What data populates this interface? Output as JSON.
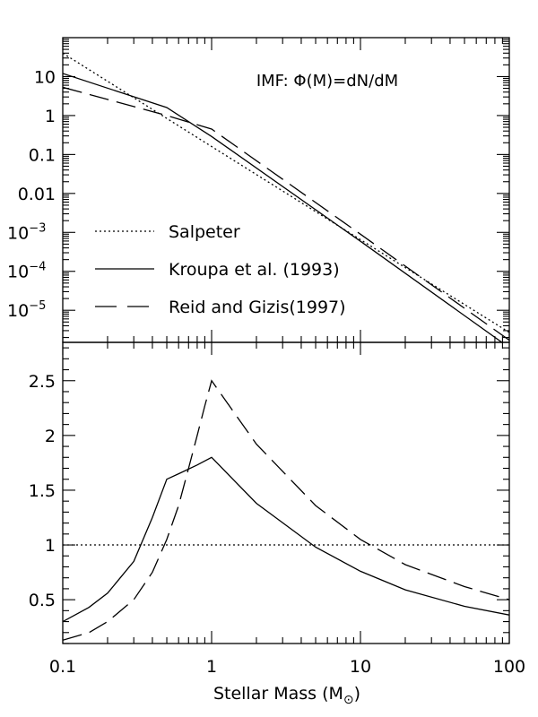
{
  "chart_data": [
    {
      "type": "line",
      "x_scale": "log",
      "y_scale": "log",
      "xlim": [
        0.1,
        100
      ],
      "ylim": [
        1.5e-06,
        100
      ],
      "y_tick_labels": [
        {
          "value": 10,
          "text": "10"
        },
        {
          "value": 1,
          "text": "1"
        },
        {
          "value": 0.1,
          "text": "0.1"
        },
        {
          "value": 0.01,
          "text": "0.01"
        },
        {
          "value": 0.001,
          "base": "10",
          "exp": "−3"
        },
        {
          "value": 0.0001,
          "base": "10",
          "exp": "−4"
        },
        {
          "value": 1e-05,
          "base": "10",
          "exp": "−5"
        }
      ],
      "annotation": "IMF: Φ(M)=dN/dM",
      "legend_position": "lower-left",
      "series": [
        {
          "name": "Salpeter",
          "style": "dotted",
          "x": [
            0.1,
            1,
            10,
            100
          ],
          "y": [
            40,
            0.16,
            0.00065,
            2.7e-06
          ]
        },
        {
          "name": "Kroupa et al. (1993)",
          "style": "solid",
          "x": [
            0.1,
            0.5,
            1,
            10,
            100
          ],
          "y": [
            12,
            1.6,
            0.29,
            0.00059,
            1.1e-06
          ]
        },
        {
          "name": "Reid and Gizis(1997)",
          "style": "dashed",
          "x": [
            0.1,
            0.5,
            1,
            10,
            100
          ],
          "y": [
            5.3,
            1.0,
            0.45,
            0.0009,
            1.7e-06
          ]
        }
      ]
    },
    {
      "type": "line",
      "x_scale": "log",
      "y_scale": "linear",
      "xlim": [
        0.1,
        100
      ],
      "ylim": [
        0.1,
        2.85
      ],
      "xlabel_text": "Stellar Mass (M",
      "xlabel_sub": "⊙",
      "xlabel_close": ")",
      "x_tick_labels": [
        {
          "value": 0.1,
          "text": "0.1"
        },
        {
          "value": 1,
          "text": "1"
        },
        {
          "value": 10,
          "text": "10"
        },
        {
          "value": 100,
          "text": "100"
        }
      ],
      "y_tick_labels": [
        {
          "value": 0.5,
          "text": "0.5"
        },
        {
          "value": 1,
          "text": "1"
        },
        {
          "value": 1.5,
          "text": "1.5"
        },
        {
          "value": 2,
          "text": "2"
        },
        {
          "value": 2.5,
          "text": "2.5"
        }
      ],
      "series": [
        {
          "style": "dotted",
          "x": [
            0.1,
            100
          ],
          "y": [
            1,
            1
          ]
        },
        {
          "style": "solid",
          "x": [
            0.1,
            0.15,
            0.2,
            0.3,
            0.4,
            0.5,
            0.6,
            0.8,
            1,
            2,
            5,
            10,
            20,
            50,
            100
          ],
          "y": [
            0.3,
            0.43,
            0.56,
            0.85,
            1.25,
            1.6,
            1.65,
            1.73,
            1.8,
            1.38,
            0.98,
            0.76,
            0.59,
            0.44,
            0.36
          ]
        },
        {
          "style": "dashed",
          "x": [
            0.1,
            0.15,
            0.2,
            0.3,
            0.4,
            0.5,
            0.6,
            0.7,
            0.8,
            0.9,
            1,
            2,
            5,
            10,
            20,
            50,
            100
          ],
          "y": [
            0.13,
            0.2,
            0.3,
            0.5,
            0.75,
            1.05,
            1.36,
            1.7,
            2.0,
            2.27,
            2.5,
            1.92,
            1.36,
            1.05,
            0.82,
            0.62,
            0.5
          ]
        }
      ]
    }
  ]
}
